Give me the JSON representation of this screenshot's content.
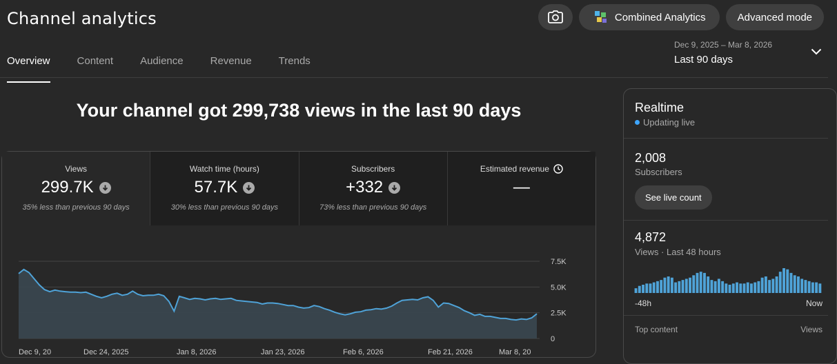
{
  "header": {
    "title": "Channel analytics",
    "combined_label": "Combined Analytics",
    "advanced_label": "Advanced mode",
    "icons": {
      "camera": "camera-icon",
      "combined": "combined-analytics-logo-icon"
    }
  },
  "tabs": [
    {
      "label": "Overview",
      "active": true
    },
    {
      "label": "Content",
      "active": false
    },
    {
      "label": "Audience",
      "active": false
    },
    {
      "label": "Revenue",
      "active": false
    },
    {
      "label": "Trends",
      "active": false
    }
  ],
  "date_picker": {
    "range": "Dec 9, 2025 – Mar 8, 2026",
    "label": "Last 90 days"
  },
  "headline": "Your channel got 299,738 views in the last 90 days",
  "metrics": [
    {
      "label": "Views",
      "value": "299.7K",
      "note": "35% less than previous 90 days",
      "trend": "down",
      "selected": true
    },
    {
      "label": "Watch time (hours)",
      "value": "57.7K",
      "note": "30% less than previous 90 days",
      "trend": "down",
      "selected": false
    },
    {
      "label": "Subscribers",
      "value": "+332",
      "note": "73% less than previous 90 days",
      "trend": "down",
      "selected": false
    },
    {
      "label": "Estimated revenue",
      "value": "—",
      "note": "",
      "trend": "none",
      "selected": false
    }
  ],
  "chart_data": {
    "type": "area",
    "series": [
      {
        "values": [
          6300,
          6700,
          6400,
          5800,
          5200,
          4750,
          4550,
          4700,
          4600,
          4550,
          4500,
          4500,
          4450,
          4500,
          4300,
          4100,
          3950,
          4100,
          4300,
          4400,
          4200,
          4300,
          4600,
          4300,
          4150,
          4200,
          4200,
          4300,
          4150,
          3600,
          2650,
          4100,
          3950,
          3800,
          3900,
          3850,
          3750,
          3850,
          3900,
          3800,
          3850,
          3900,
          3700,
          3650,
          3600,
          3550,
          3500,
          3350,
          3450,
          3450,
          3400,
          3300,
          3200,
          3200,
          3050,
          2950,
          3000,
          3200,
          3100,
          2900,
          2750,
          2550,
          2400,
          2300,
          2400,
          2550,
          2600,
          2750,
          2800,
          2900,
          2850,
          2950,
          3150,
          3450,
          3700,
          3750,
          3800,
          3750,
          3950,
          4050,
          3700,
          3050,
          3450,
          3400,
          3200,
          3000,
          2700,
          2500,
          2250,
          2350,
          2150,
          2150,
          2050,
          1950,
          1950,
          1850,
          1800,
          1900,
          1850,
          2000,
          2400
        ]
      }
    ],
    "x_tick_labels": [
      "Dec 9, 20",
      "Dec 24, 2025",
      "Jan 8, 2026",
      "Jan 23, 2026",
      "Feb 6, 2026",
      "Feb 21, 2026",
      "Mar 8, 20"
    ],
    "y_tick_labels": [
      "7.5K",
      "5.0K",
      "2.5K",
      "0"
    ],
    "ylim": [
      0,
      7500
    ],
    "grid": true,
    "color": "#4fa3d8"
  },
  "realtime": {
    "title": "Realtime",
    "status": "Updating live",
    "subscribers_value": "2,008",
    "subscribers_label": "Subscribers",
    "live_count_label": "See live count",
    "views_value": "4,872",
    "views_label": "Views · Last 48 hours",
    "bars": [
      4,
      6,
      7,
      8,
      8,
      9,
      10,
      11,
      13,
      14,
      13,
      9,
      10,
      11,
      12,
      13,
      15,
      17,
      18,
      17,
      14,
      11,
      10,
      12,
      10,
      8,
      7,
      8,
      9,
      8,
      8,
      9,
      8,
      9,
      10,
      13,
      14,
      11,
      12,
      14,
      18,
      21,
      20,
      17,
      15,
      14,
      12,
      11,
      10,
      9,
      9,
      8
    ],
    "axis_left": "-48h",
    "axis_right": "Now",
    "top_content_label": "Top content",
    "top_views_label": "Views",
    "color": "#4fa3d8"
  }
}
